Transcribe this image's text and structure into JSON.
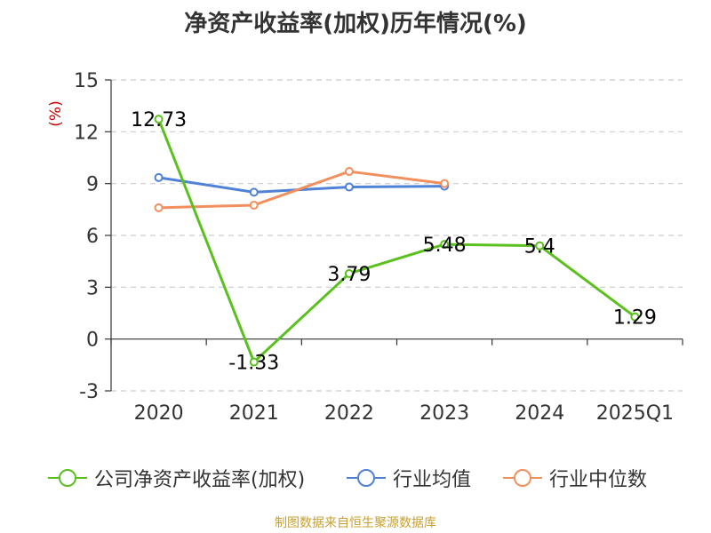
{
  "chart_data": {
    "type": "line",
    "title": "净资产收益率(加权)历年情况(%)",
    "ylabel": "(%)",
    "categories": [
      "2020",
      "2021",
      "2022",
      "2023",
      "2024",
      "2025Q1"
    ],
    "ylim": [
      -3,
      15
    ],
    "yticks": [
      15,
      12,
      9,
      6,
      3,
      0,
      -3
    ],
    "ytick_labels": [
      "15",
      "12",
      "9",
      "6",
      "3",
      "0",
      "-3"
    ],
    "grid": true,
    "legend_position": "bottom",
    "series": [
      {
        "name": "公司净资产收益率(加权)",
        "color": "#5ac01e",
        "values": [
          12.73,
          -1.33,
          3.79,
          5.48,
          5.4,
          1.29
        ],
        "labels": [
          "12.73",
          "-1.33",
          "3.79",
          "5.48",
          "5.4",
          "1.29"
        ]
      },
      {
        "name": "行业均值",
        "color": "#4f81d6",
        "values": [
          9.35,
          8.5,
          8.8,
          8.85,
          null,
          null
        ]
      },
      {
        "name": "行业中位数",
        "color": "#f28f5e",
        "values": [
          7.6,
          7.75,
          9.7,
          9.0,
          null,
          null
        ]
      }
    ],
    "source": "制图数据来自恒生聚源数据库"
  }
}
